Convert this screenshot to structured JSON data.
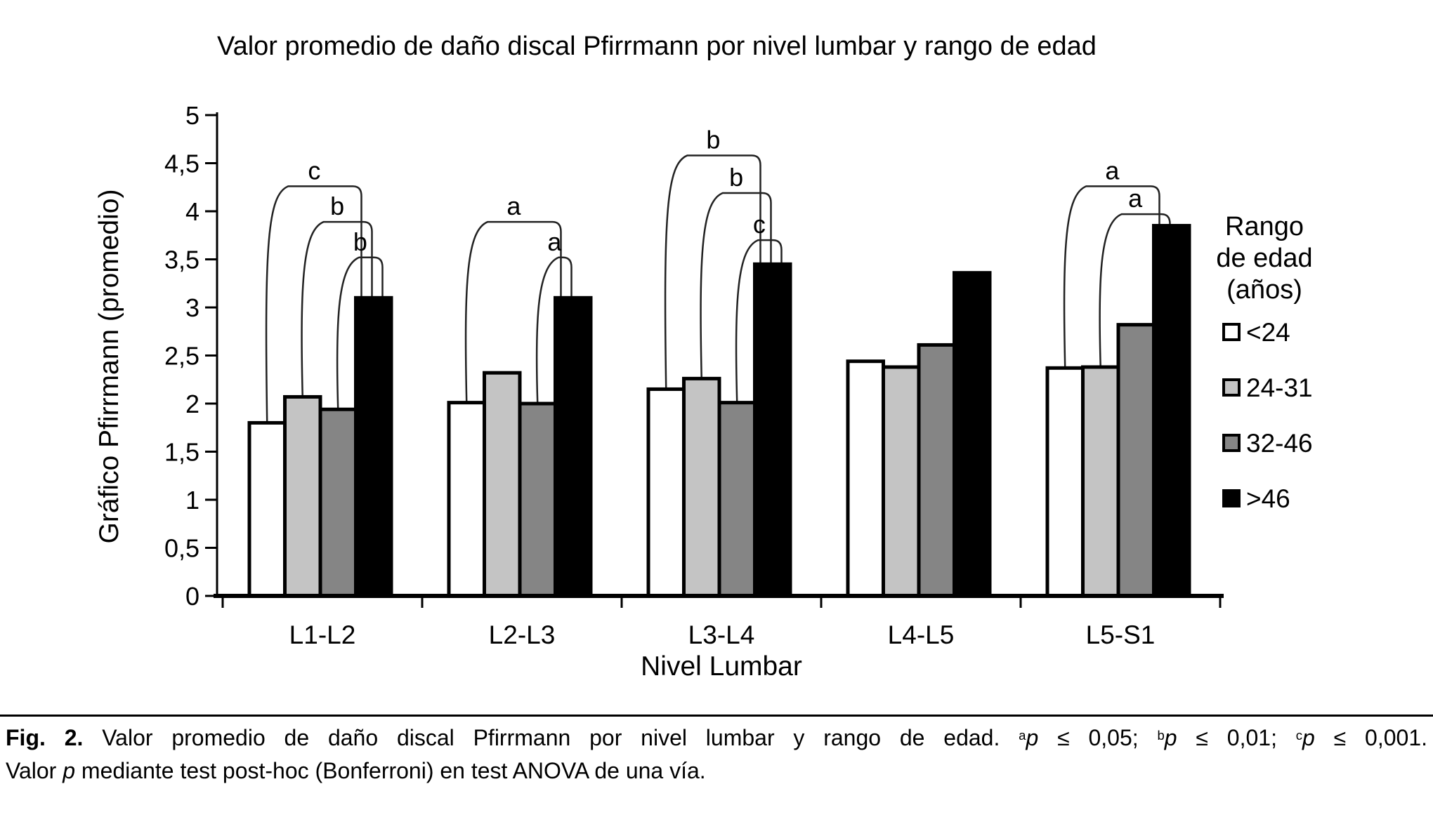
{
  "page": {
    "background": "#ffffff"
  },
  "chart_data": {
    "type": "bar",
    "title": "Valor promedio de daño discal Pfirrmann por nivel lumbar y rango de edad",
    "xlabel": "Nivel Lumbar",
    "ylabel": "Gráfico Pfirrmann (promedio)",
    "legend_title_lines": [
      "Rango",
      "de edad",
      "(años)"
    ],
    "legend_position": "right",
    "categories": [
      "L1-L2",
      "L2-L3",
      "L3-L4",
      "L4-L5",
      "L5-S1"
    ],
    "series": [
      {
        "name": "<24",
        "color": "#ffffff",
        "values": [
          1.8,
          2.01,
          2.15,
          2.44,
          2.37
        ]
      },
      {
        "name": "24-31",
        "color": "#c4c4c4",
        "values": [
          2.07,
          2.32,
          2.26,
          2.38,
          2.38
        ]
      },
      {
        "name": "32-46",
        "color": "#858585",
        "values": [
          1.94,
          2.0,
          2.01,
          2.61,
          2.82
        ]
      },
      {
        "name": ">46",
        "color": "#000000",
        "values": [
          3.1,
          3.1,
          3.45,
          3.36,
          3.85
        ]
      }
    ],
    "ylim": [
      0,
      5
    ],
    "ytick_labels": [
      "0",
      "0,5",
      "1",
      "1,5",
      "2",
      "2,5",
      "3",
      "3,5",
      "4",
      "4,5",
      "5"
    ],
    "grid": false,
    "bar_outline": "#000000",
    "significance_brackets": [
      {
        "group": "L1-L2",
        "label": "c",
        "from": "<24",
        "to": ">46",
        "height": 4.26
      },
      {
        "group": "L1-L2",
        "label": "b",
        "from": "24-31",
        "to": ">46",
        "height": 3.89
      },
      {
        "group": "L1-L2",
        "label": "b",
        "from": "32-46",
        "to": ">46",
        "height": 3.52
      },
      {
        "group": "L2-L3",
        "label": "a",
        "from": "<24",
        "to": ">46",
        "height": 3.89
      },
      {
        "group": "L2-L3",
        "label": "a",
        "from": "32-46",
        "to": ">46",
        "height": 3.52
      },
      {
        "group": "L3-L4",
        "label": "b",
        "from": "<24",
        "to": ">46",
        "height": 4.58
      },
      {
        "group": "L3-L4",
        "label": "b",
        "from": "24-31",
        "to": ">46",
        "height": 4.19
      },
      {
        "group": "L3-L4",
        "label": "c",
        "from": "32-46",
        "to": ">46",
        "height": 3.7
      },
      {
        "group": "L5-S1",
        "label": "a",
        "from": "<24",
        "to": ">46",
        "height": 4.26
      },
      {
        "group": "L5-S1",
        "label": "a",
        "from": "24-31",
        "to": ">46",
        "height": 3.97
      }
    ]
  },
  "caption": {
    "lines": [
      {
        "segments": [
          {
            "t": "Fig. 2.",
            "b": true
          },
          {
            "t": " Valor promedio de daño discal Pfirrmann por nivel lumbar y rango de edad. "
          },
          {
            "t": "a",
            "sup": true
          },
          {
            "t": "p",
            "i": true
          },
          {
            "t": " ≤ 0,05; "
          },
          {
            "t": "b",
            "sup": true
          },
          {
            "t": "p",
            "i": true
          },
          {
            "t": " ≤ 0,01; "
          },
          {
            "t": "c",
            "sup": true
          },
          {
            "t": "p",
            "i": true
          },
          {
            "t": " ≤ 0,001."
          }
        ]
      },
      {
        "segments": [
          {
            "t": "Valor "
          },
          {
            "t": "p",
            "i": true
          },
          {
            "t": " mediante test post-hoc (Bonferroni) en test ANOVA de una vía."
          }
        ]
      }
    ]
  }
}
